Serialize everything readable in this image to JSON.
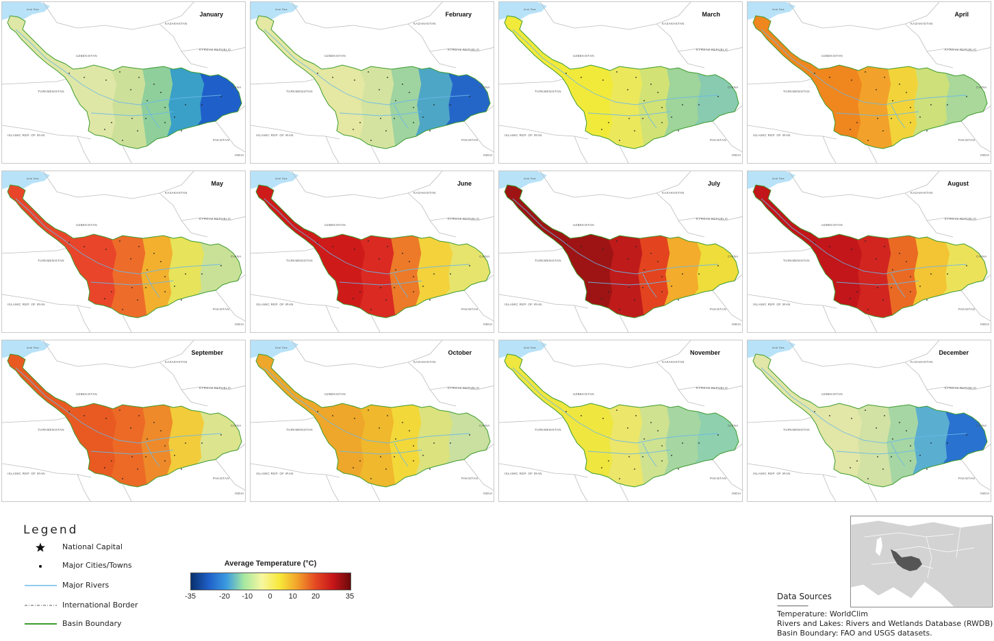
{
  "months": [
    {
      "label": "January",
      "colors": [
        "#dfe7a6",
        "#cde09a",
        "#8fcf9c",
        "#3aa0c8",
        "#1f5fc9"
      ]
    },
    {
      "label": "February",
      "colors": [
        "#e4e8a2",
        "#d4e4a0",
        "#9fd3a0",
        "#4ea6c6",
        "#2466c8"
      ]
    },
    {
      "label": "March",
      "colors": [
        "#f2ea3a",
        "#ece85c",
        "#d2e274",
        "#9fd49a",
        "#88cbb0"
      ]
    },
    {
      "label": "April",
      "colors": [
        "#f0861e",
        "#f2a22a",
        "#f2d43a",
        "#cde07a",
        "#a9d89a"
      ]
    },
    {
      "label": "May",
      "colors": [
        "#e9452a",
        "#ee6c2a",
        "#f2b02e",
        "#e7e35a",
        "#c9e196"
      ]
    },
    {
      "label": "June",
      "colors": [
        "#cf1a1a",
        "#da2a22",
        "#ec7a28",
        "#f3d23c",
        "#e6e46c"
      ]
    },
    {
      "label": "July",
      "colors": [
        "#9e1414",
        "#bf1b1b",
        "#e3441f",
        "#f3ac2b",
        "#eedd3a"
      ]
    },
    {
      "label": "August",
      "colors": [
        "#c2161a",
        "#d22520",
        "#ea6a24",
        "#f3c433",
        "#ece25a"
      ]
    },
    {
      "label": "September",
      "colors": [
        "#e85a22",
        "#ec6a26",
        "#ee8a2a",
        "#f2cc3a",
        "#dce48e"
      ]
    },
    {
      "label": "October",
      "colors": [
        "#eea72a",
        "#f0b82c",
        "#f3d83a",
        "#dbe27e",
        "#c9e0a0"
      ]
    },
    {
      "label": "November",
      "colors": [
        "#efe640",
        "#ece66a",
        "#cfe290",
        "#a6d6a2",
        "#8fd0ae"
      ]
    },
    {
      "label": "December",
      "colors": [
        "#e2e6a6",
        "#d2e2a4",
        "#a6d6a4",
        "#5aaed0",
        "#2a72cf"
      ]
    }
  ],
  "map_labels": {
    "kazakhstan": "KAZAKHSTAN",
    "uzbekistan": "UZBEKISTAN",
    "kyrgyz": "KYRGYZ REPUBLIC",
    "turkmenistan": "TURKMENISTAN",
    "china": "CHINA",
    "iran": "ISLAMIC REP. OF IRAN",
    "pakistan": "PAKISTAN",
    "india": "INDIA",
    "aral": "Aral Sea"
  },
  "legend": {
    "title": "Legend",
    "items": [
      {
        "kind": "star",
        "label": "National Capital"
      },
      {
        "kind": "dot",
        "label": "Major Cities/Towns"
      },
      {
        "kind": "river",
        "label": "Major Rivers"
      },
      {
        "kind": "border",
        "label": "International Border"
      },
      {
        "kind": "basin",
        "label": "Basin Boundary"
      }
    ],
    "colorbar": {
      "title": "Average Temperature (°C)",
      "min": -35,
      "max": 35,
      "ticks": [
        "-35",
        "-20",
        "-10",
        "0",
        "10",
        "20",
        "35"
      ],
      "tick_values": [
        -35,
        -20,
        -10,
        0,
        10,
        20,
        35
      ],
      "stops": [
        "#08306b",
        "#1f5fc9",
        "#3b9be0",
        "#a6e8a0",
        "#f7f7a0",
        "#f7e83a",
        "#f2a22a",
        "#e44a22",
        "#c8161a",
        "#6b0a0a"
      ]
    }
  },
  "sources": {
    "title": "Data Sources",
    "separator": "--------------------",
    "lines": [
      "Temperature: WorldClim",
      "Rivers and Lakes: Rivers and Wetlands Database (RWDB)",
      "Basin Boundary: FAO and USGS datasets."
    ]
  },
  "colors": {
    "lake": "#b8e2f8",
    "river": "#6ab8e8",
    "border": "#bbbbbb",
    "basin": "#3c9a2c",
    "inset_land": "#cfcfcf",
    "inset_basin": "#555555"
  }
}
